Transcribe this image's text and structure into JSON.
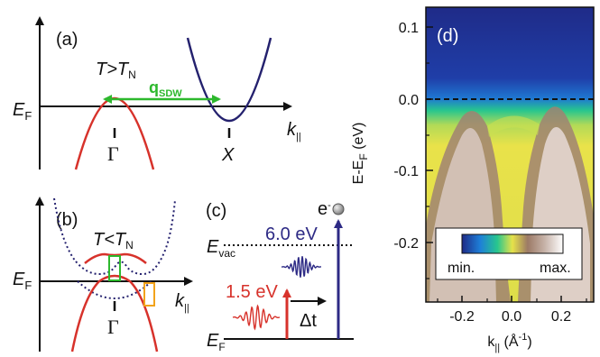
{
  "panels": {
    "a": {
      "label": "(a)",
      "temp": "T>T",
      "temp_sub": "N",
      "ef": "E",
      "ef_sub": "F",
      "q_main": "q",
      "q_sub": "SDW",
      "k_main": "k",
      "k_sub": "||",
      "gamma": "Γ",
      "x_point": "X"
    },
    "b": {
      "label": "(b)",
      "temp": "T<T",
      "temp_sub": "N",
      "ef": "E",
      "ef_sub": "F",
      "k_main": "k",
      "k_sub": "||",
      "gamma": "Γ"
    },
    "c": {
      "label": "(c)",
      "electron": "e",
      "electron_sup": "-",
      "evac": "E",
      "evac_sub": "vac",
      "probe": "6.0 eV",
      "pump": "1.5 eV",
      "delay": "Δt",
      "ef": "E",
      "ef_sub": "F"
    },
    "d": {
      "label": "(d)",
      "ylabel_main": "E-E",
      "ylabel_sub": "F",
      "ylabel_unit": " (eV)",
      "xlabel_main": "k",
      "xlabel_sub": "||",
      "xlabel_unit": " (Å",
      "xlabel_sup": "-1",
      "xlabel_close": ")",
      "yticks": [
        "0.1",
        "0.0",
        "-0.1",
        "-0.2"
      ],
      "xticks": [
        "-0.2",
        "0.0",
        "0.2"
      ],
      "cbar_min": "min.",
      "cbar_max": "max."
    }
  },
  "colors": {
    "red_band": "#d7322b",
    "blue_band": "#24216e",
    "green": "#2db82d",
    "orange": "#f2a31b",
    "probe": "#2d2a85",
    "pump": "#d7322b"
  }
}
